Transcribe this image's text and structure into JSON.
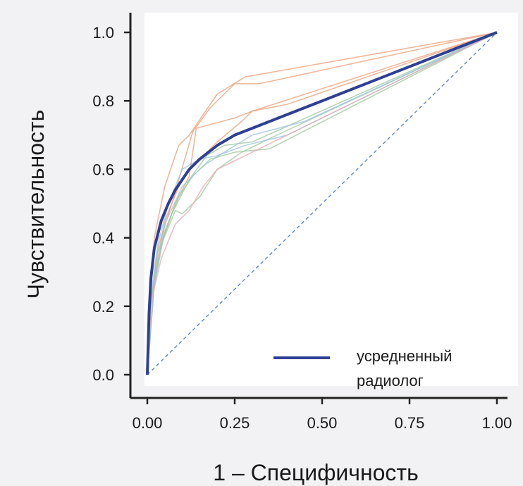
{
  "chart_data": {
    "type": "line",
    "title": "",
    "xlabel": "1 – Специфичность",
    "ylabel": "Чувствительность",
    "xlim": [
      0,
      1
    ],
    "ylim": [
      0,
      1
    ],
    "xticks": [
      "0.00",
      "0.25",
      "0.50",
      "0.75",
      "1.00"
    ],
    "yticks": [
      "0.0",
      "0.2",
      "0.4",
      "0.6",
      "0.8",
      "1.0"
    ],
    "grid": false,
    "legend_position": "bottom-right",
    "legend": [
      "усредненный",
      "радиолог"
    ],
    "colors": {
      "average": "#2f3f93",
      "diagonal": "#6a8fc8",
      "orange": "#e8a07a",
      "green": "#9cc89c",
      "blue": "#9cc4e0",
      "pink": "#e6a9b4"
    },
    "series": [
      {
        "name": "усредненный радиолог",
        "role": "average",
        "x": [
          0,
          0.005,
          0.01,
          0.02,
          0.04,
          0.06,
          0.08,
          0.1,
          0.12,
          0.15,
          0.2,
          0.25,
          0.3,
          0.4,
          0.5,
          0.6,
          0.7,
          0.8,
          0.9,
          1.0
        ],
        "y": [
          0,
          0.18,
          0.28,
          0.37,
          0.45,
          0.5,
          0.54,
          0.57,
          0.6,
          0.63,
          0.67,
          0.7,
          0.72,
          0.76,
          0.8,
          0.84,
          0.88,
          0.92,
          0.96,
          1.0
        ]
      },
      {
        "role": "reference",
        "x": [
          0,
          1
        ],
        "y": [
          0,
          1
        ]
      },
      {
        "role": "orange",
        "x": [
          0,
          0.01,
          0.02,
          0.05,
          0.09,
          0.12,
          0.2,
          0.28,
          1.0
        ],
        "y": [
          0,
          0.25,
          0.4,
          0.55,
          0.67,
          0.7,
          0.82,
          0.87,
          1.0
        ]
      },
      {
        "role": "orange",
        "x": [
          0,
          0.01,
          0.03,
          0.07,
          0.13,
          0.18,
          0.25,
          0.32,
          1.0
        ],
        "y": [
          0,
          0.2,
          0.37,
          0.5,
          0.71,
          0.78,
          0.85,
          0.85,
          1.0
        ]
      },
      {
        "role": "orange",
        "x": [
          0,
          0.01,
          0.04,
          0.08,
          0.12,
          0.14,
          0.25,
          0.3,
          0.4,
          1.0
        ],
        "y": [
          0,
          0.22,
          0.38,
          0.5,
          0.58,
          0.72,
          0.75,
          0.77,
          0.79,
          1.0
        ]
      },
      {
        "role": "orange",
        "x": [
          0,
          0.02,
          0.05,
          0.09,
          0.12,
          0.2,
          0.27,
          0.3,
          1.0
        ],
        "y": [
          0,
          0.28,
          0.45,
          0.55,
          0.6,
          0.68,
          0.74,
          0.77,
          1.0
        ]
      },
      {
        "role": "green",
        "x": [
          0,
          0.01,
          0.04,
          0.08,
          0.1,
          0.15,
          0.2,
          0.27,
          0.35,
          1.0
        ],
        "y": [
          0,
          0.22,
          0.38,
          0.48,
          0.47,
          0.52,
          0.6,
          0.65,
          0.69,
          1.0
        ]
      },
      {
        "role": "green",
        "x": [
          0,
          0.02,
          0.05,
          0.09,
          0.13,
          0.18,
          0.25,
          0.35,
          1.0
        ],
        "y": [
          0,
          0.26,
          0.42,
          0.52,
          0.58,
          0.63,
          0.65,
          0.66,
          1.0
        ]
      },
      {
        "role": "green",
        "x": [
          0,
          0.01,
          0.03,
          0.07,
          0.12,
          0.17,
          0.22,
          0.3,
          1.0
        ],
        "y": [
          0,
          0.2,
          0.36,
          0.47,
          0.57,
          0.64,
          0.67,
          0.68,
          1.0
        ]
      },
      {
        "role": "blue",
        "x": [
          0,
          0.01,
          0.03,
          0.06,
          0.1,
          0.15,
          0.2,
          0.28,
          0.4,
          1.0
        ],
        "y": [
          0,
          0.23,
          0.38,
          0.5,
          0.6,
          0.63,
          0.64,
          0.67,
          0.7,
          1.0
        ]
      },
      {
        "role": "blue",
        "x": [
          0,
          0.02,
          0.05,
          0.1,
          0.16,
          0.22,
          0.3,
          0.45,
          1.0
        ],
        "y": [
          0,
          0.27,
          0.44,
          0.55,
          0.61,
          0.65,
          0.7,
          0.74,
          1.0
        ]
      },
      {
        "role": "pink",
        "x": [
          0,
          0.01,
          0.04,
          0.08,
          0.12,
          0.16,
          0.2,
          0.3,
          1.0
        ],
        "y": [
          0,
          0.21,
          0.34,
          0.44,
          0.48,
          0.55,
          0.6,
          0.65,
          1.0
        ]
      }
    ]
  }
}
